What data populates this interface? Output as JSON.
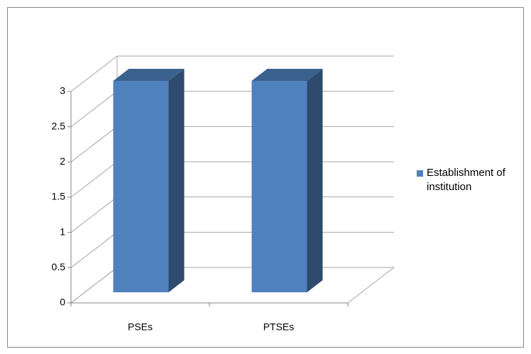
{
  "chart_data": {
    "type": "bar3d",
    "categories": [
      "PSEs",
      "PTSEs"
    ],
    "series": [
      {
        "name": "Establishment of institution",
        "color": "#4f81bd",
        "values": [
          3,
          3
        ]
      }
    ],
    "ylim": [
      0,
      3
    ],
    "yticks": [
      0,
      0.5,
      1,
      1.5,
      2,
      2.5,
      3
    ],
    "grid": true,
    "legend": "right"
  }
}
